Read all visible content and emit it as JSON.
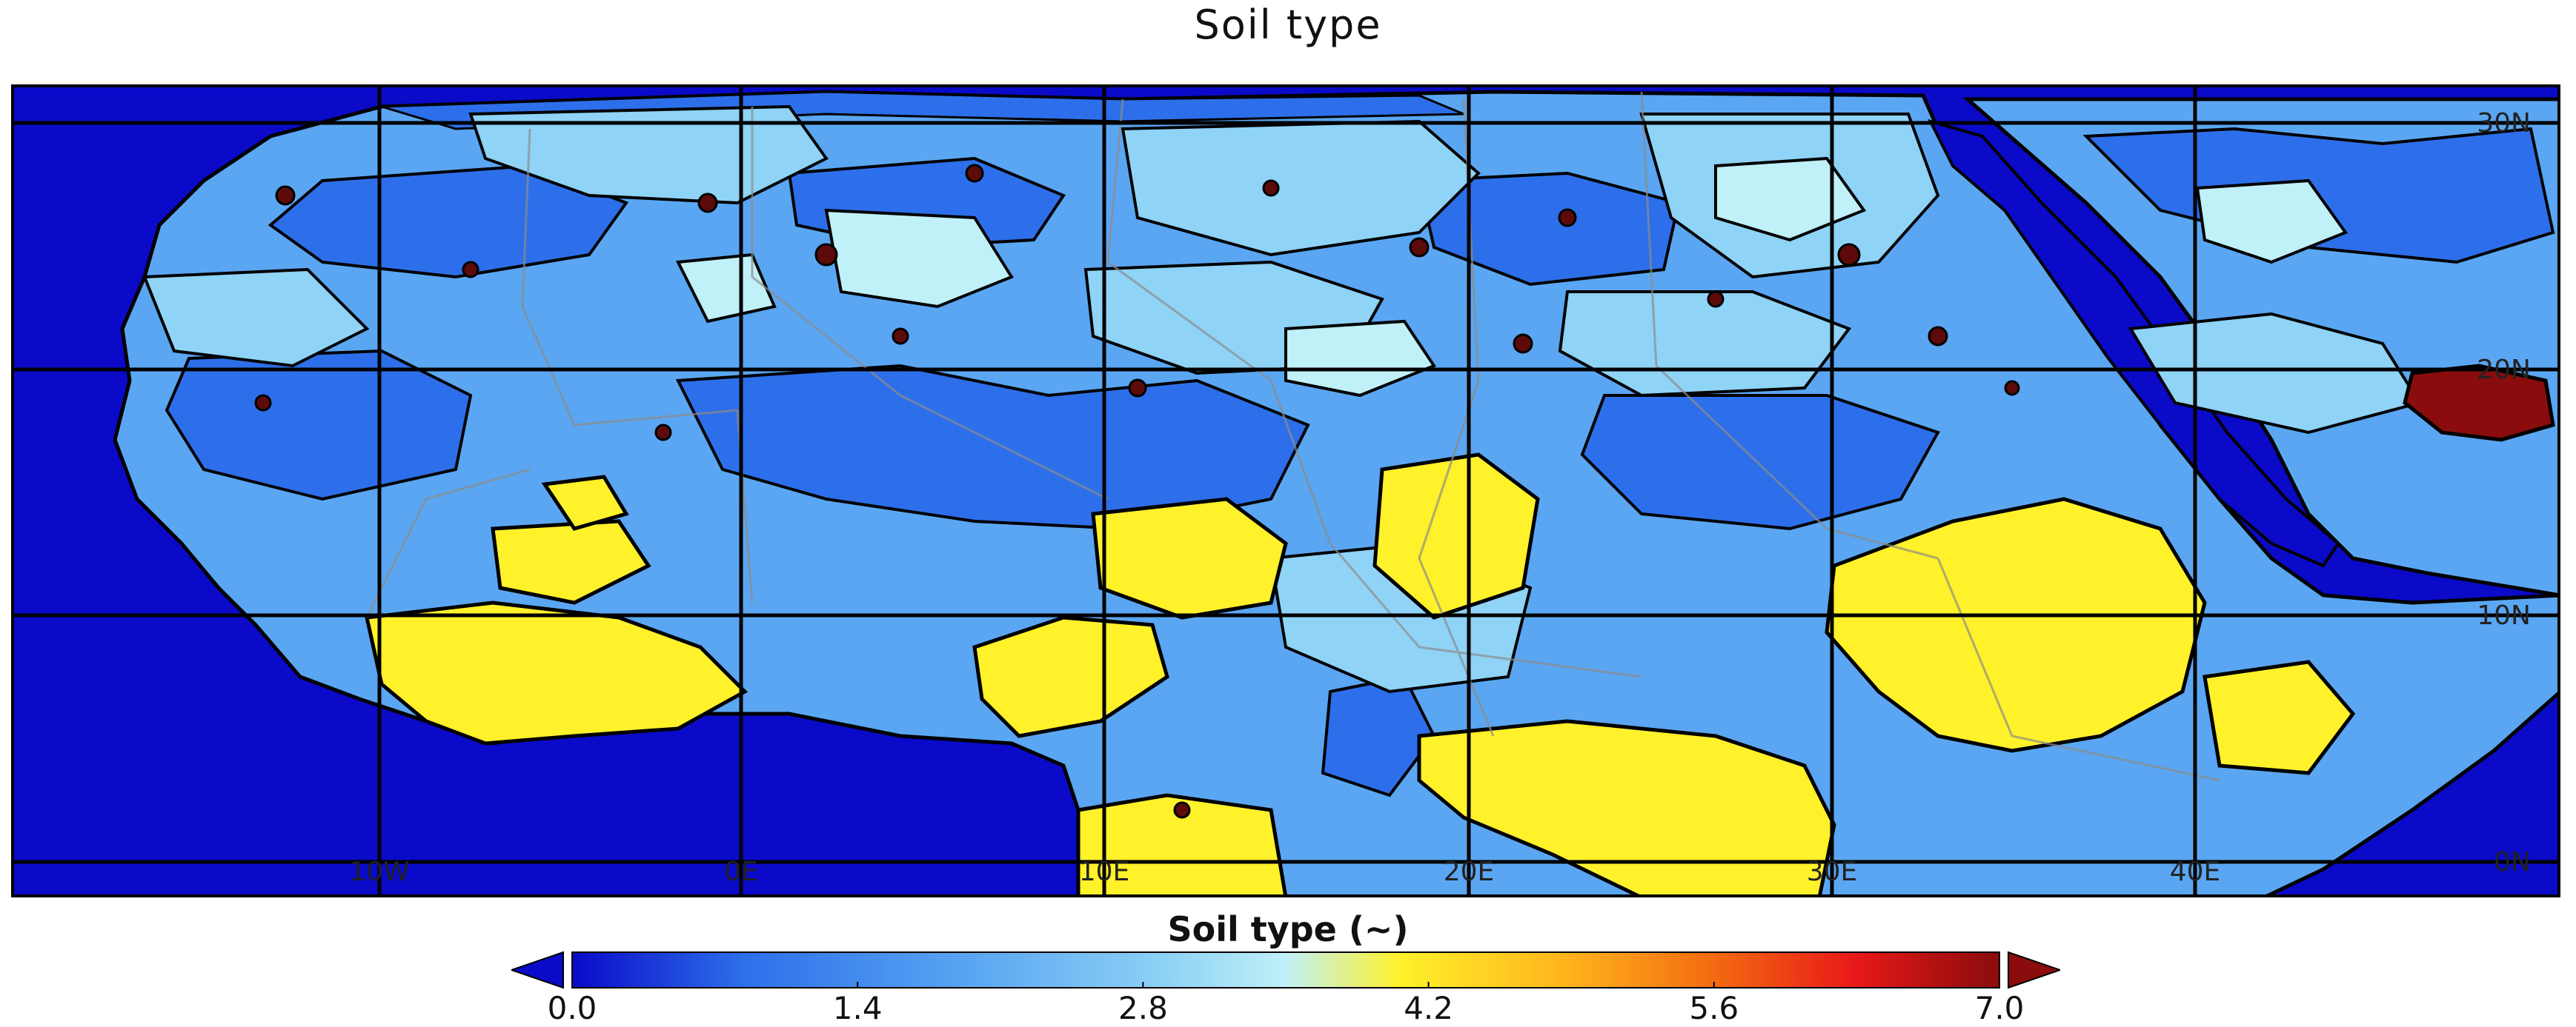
{
  "title": "Soil type",
  "colorbar": {
    "label": "Soil type (~)",
    "ticks": [
      "0.0",
      "1.4",
      "2.8",
      "4.2",
      "5.6",
      "7.0"
    ],
    "min": 0.0,
    "max": 7.0,
    "colors": [
      "#0a0ac8",
      "#2d6fea",
      "#5aa6f2",
      "#8fd3f6",
      "#c0f0f8",
      "#fff12a",
      "#ffb21c",
      "#f36a12",
      "#e81818",
      "#8a0c0c"
    ]
  },
  "map": {
    "lat_labels": [
      "30N",
      "20N",
      "10N",
      "0N"
    ],
    "lon_labels": [
      "10W",
      "0E",
      "10E",
      "20E",
      "30E",
      "40E"
    ],
    "palette": {
      "ocean": "#0a0ac8",
      "class_1": "#2d6fea",
      "class_2": "#5aa6f2",
      "class_3": "#8fd3f6",
      "class_4": "#c0f0f8",
      "class_5": "#fff12a",
      "class_7": "#8a0c0c"
    }
  }
}
